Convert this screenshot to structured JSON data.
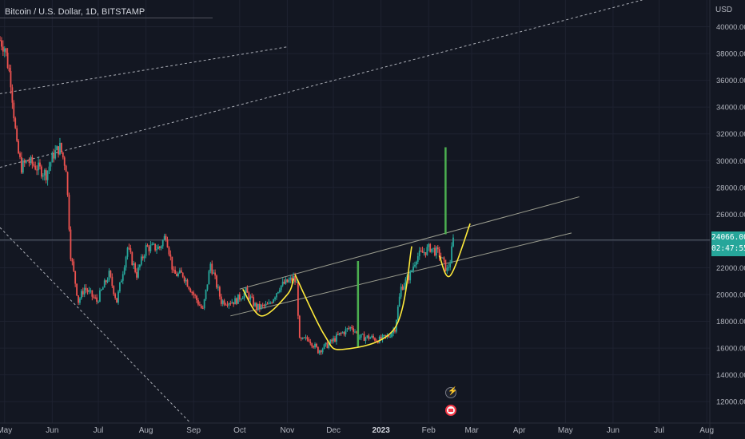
{
  "header": {
    "symbol_line": "Bitcoin / U.S. Dollar, 1D, BITSTAMP"
  },
  "price_axis": {
    "unit": "USD",
    "current_price": "24066.00",
    "countdown": "02:47:55",
    "tag_color": "#26a69a"
  },
  "icons": {
    "event_top": "lightning-icon",
    "event_bottom": "earnings-flag-icon"
  },
  "colors": {
    "background": "#131722",
    "up": "#26a69a",
    "down": "#ef5350",
    "cup_curve": "#ffeb3b",
    "bullish_spike": "#4caf50",
    "channel_lines": "#9a9c8e",
    "dashed_lines": "#d1d4dc"
  },
  "chart_data": {
    "type": "candlestick",
    "title": "Bitcoin / U.S. Dollar, 1D, BITSTAMP",
    "xlabel": "",
    "ylabel": "USD",
    "ylim": [
      10400,
      42000
    ],
    "y_ticks": [
      12000,
      14000,
      16000,
      18000,
      20000,
      22000,
      24000,
      26000,
      28000,
      30000,
      32000,
      34000,
      36000,
      38000,
      40000
    ],
    "x_range": [
      "2022-04-28",
      "2023-08-03"
    ],
    "x_ticks": [
      {
        "label": "May",
        "date": "2022-05-01",
        "bold": false
      },
      {
        "label": "Jun",
        "date": "2022-06-01",
        "bold": false
      },
      {
        "label": "Jul",
        "date": "2022-07-01",
        "bold": false
      },
      {
        "label": "Aug",
        "date": "2022-08-01",
        "bold": false
      },
      {
        "label": "Sep",
        "date": "2022-09-01",
        "bold": false
      },
      {
        "label": "Oct",
        "date": "2022-10-01",
        "bold": false
      },
      {
        "label": "Nov",
        "date": "2022-11-01",
        "bold": false
      },
      {
        "label": "Dec",
        "date": "2022-12-01",
        "bold": false
      },
      {
        "label": "2023",
        "date": "2023-01-01",
        "bold": true
      },
      {
        "label": "Feb",
        "date": "2023-02-01",
        "bold": false
      },
      {
        "label": "Mar",
        "date": "2023-03-01",
        "bold": false
      },
      {
        "label": "Apr",
        "date": "2023-04-01",
        "bold": false
      },
      {
        "label": "May",
        "date": "2023-05-01",
        "bold": false
      },
      {
        "label": "Jun",
        "date": "2023-06-01",
        "bold": false
      },
      {
        "label": "Jul",
        "date": "2023-07-01",
        "bold": false
      },
      {
        "label": "Aug",
        "date": "2023-08-01",
        "bold": false
      }
    ],
    "price_path": [
      [
        "2022-04-28",
        39000
      ],
      [
        "2022-05-01",
        38500
      ],
      [
        "2022-05-05",
        36000
      ],
      [
        "2022-05-09",
        31000
      ],
      [
        "2022-05-12",
        29500
      ],
      [
        "2022-05-16",
        30000
      ],
      [
        "2022-05-22",
        29500
      ],
      [
        "2022-05-28",
        29000
      ],
      [
        "2022-06-02",
        30500
      ],
      [
        "2022-06-06",
        31000
      ],
      [
        "2022-06-10",
        29500
      ],
      [
        "2022-06-13",
        23000
      ],
      [
        "2022-06-18",
        19500
      ],
      [
        "2022-06-22",
        20500
      ],
      [
        "2022-06-30",
        19500
      ],
      [
        "2022-07-08",
        21500
      ],
      [
        "2022-07-13",
        19500
      ],
      [
        "2022-07-20",
        23500
      ],
      [
        "2022-07-26",
        21500
      ],
      [
        "2022-08-01",
        23500
      ],
      [
        "2022-08-10",
        23500
      ],
      [
        "2022-08-14",
        24500
      ],
      [
        "2022-08-19",
        21500
      ],
      [
        "2022-08-25",
        21500
      ],
      [
        "2022-09-01",
        20000
      ],
      [
        "2022-09-07",
        18800
      ],
      [
        "2022-09-12",
        22300
      ],
      [
        "2022-09-19",
        19500
      ],
      [
        "2022-09-28",
        19500
      ],
      [
        "2022-10-05",
        20200
      ],
      [
        "2022-10-12",
        19000
      ],
      [
        "2022-10-20",
        19200
      ],
      [
        "2022-10-27",
        20600
      ],
      [
        "2022-11-05",
        21200
      ],
      [
        "2022-11-07",
        20800
      ],
      [
        "2022-11-09",
        16500
      ],
      [
        "2022-11-15",
        16700
      ],
      [
        "2022-11-21",
        15800
      ],
      [
        "2022-11-28",
        16300
      ],
      [
        "2022-12-05",
        17000
      ],
      [
        "2022-12-13",
        17600
      ],
      [
        "2022-12-18",
        16800
      ],
      [
        "2022-12-25",
        16800
      ],
      [
        "2022-12-31",
        16600
      ],
      [
        "2023-01-06",
        16900
      ],
      [
        "2023-01-10",
        17500
      ],
      [
        "2023-01-14",
        20500
      ],
      [
        "2023-01-20",
        21500
      ],
      [
        "2023-01-24",
        22800
      ],
      [
        "2023-02-02",
        23500
      ],
      [
        "2023-02-08",
        23000
      ],
      [
        "2023-02-13",
        21800
      ],
      [
        "2023-02-15",
        22500
      ],
      [
        "2023-02-17",
        24066
      ]
    ],
    "annotations": {
      "horizontal_line": {
        "y": 24066
      },
      "upper_channel": [
        [
          "2022-10-01",
          20400
        ],
        [
          "2023-05-10",
          27300
        ]
      ],
      "lower_channel": [
        [
          "2022-09-25",
          18400
        ],
        [
          "2023-05-05",
          24600
        ]
      ],
      "dashed_lines": [
        [
          [
            "2022-04-28",
            35000
          ],
          [
            "2022-11-01",
            38500
          ]
        ],
        [
          [
            "2022-04-28",
            29500
          ],
          [
            "2023-06-20",
            42000
          ]
        ],
        [
          [
            "2022-04-28",
            25000
          ],
          [
            "2022-08-30",
            10400
          ]
        ]
      ],
      "cup_curves": [
        [
          [
            "2022-10-03",
            20400
          ],
          [
            "2022-10-15",
            18400
          ],
          [
            "2022-11-01",
            20000
          ],
          [
            "2022-11-05",
            21200
          ]
        ],
        [
          [
            "2022-11-06",
            21500
          ],
          [
            "2022-11-25",
            17000
          ],
          [
            "2022-12-07",
            15900
          ],
          [
            "2023-01-10",
            17500
          ],
          [
            "2023-01-21",
            23600
          ]
        ],
        [
          [
            "2023-02-08",
            22900
          ],
          [
            "2023-02-15",
            21400
          ],
          [
            "2023-02-28",
            25300
          ]
        ]
      ],
      "vertical_spikes": [
        {
          "x": "2022-12-17",
          "y_from": 16100,
          "y_to": 22500
        },
        {
          "x": "2023-02-12",
          "y_from": 24500,
          "y_to": 31000
        }
      ]
    }
  }
}
